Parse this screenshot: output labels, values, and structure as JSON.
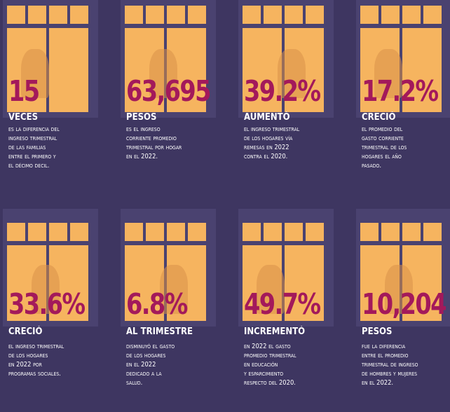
{
  "cards": [
    {
      "value": "15",
      "label": "VECES",
      "description": [
        "ES LA DIFERENCIA DEL",
        "INGRESO TRIMESTRAL",
        "DE LAS FAMILIAS",
        "ENTRE EL PRIMERO Y",
        "EL DÉCIMO DECIL."
      ]
    },
    {
      "value": "63,695",
      "label": "PESOS",
      "description": [
        "ES EL INGRESO",
        "CORRIENTE PROMEDIO",
        "TRIMESTRAL POR HOGAR",
        "EN EL 2022."
      ]
    },
    {
      "value": "39.2%",
      "label": "AUMENTÓ",
      "description": [
        "EL INGRESO TRIMESTRAL",
        "DE LOS HOGARES VÍA",
        "REMESAS EN 2022",
        "CONTRA EL 2020."
      ]
    },
    {
      "value": "17.2%",
      "label": "CRECIÓ",
      "description": [
        "EL PROMEDIO DEL",
        "GASTO CORRIENTE",
        "TRIMESTRAL DE LOS",
        "HOGARES EL AÑO",
        "PASADO."
      ]
    },
    {
      "value": "33.6%",
      "label": "CRECIÓ",
      "description": [
        "EL INGRESO TRIMESTRAL",
        "DE LOS HOGARES",
        "EN 2022 POR",
        "PROGRAMAS SOCIALES."
      ]
    },
    {
      "value": "6.8%",
      "label": "AL TRIMESTRE",
      "description": [
        "DISMINUYÓ EL GASTO",
        "DE LOS HOGARES",
        "EN EL 2022",
        "DEDICADO A LA",
        "SALUD."
      ]
    },
    {
      "value": "49.7%",
      "label": "INCREMENTÓ",
      "description": [
        "EN 2022 EL GASTO",
        "PROMEDIO TRIMESTRAL",
        "EN EDUCACIÓN",
        "Y ESPARCIMIENTO",
        "RESPECTO DEL 2020."
      ]
    },
    {
      "value": "10,204",
      "label": "PESOS",
      "description": [
        "FUE LA DIFERENCIA",
        "ENTRE EL PROMEDIO",
        "TRIMESTRAL DE INGRESO",
        "DE HOMBRES Y MUJERES",
        "EN EL 2022."
      ]
    }
  ]
}
